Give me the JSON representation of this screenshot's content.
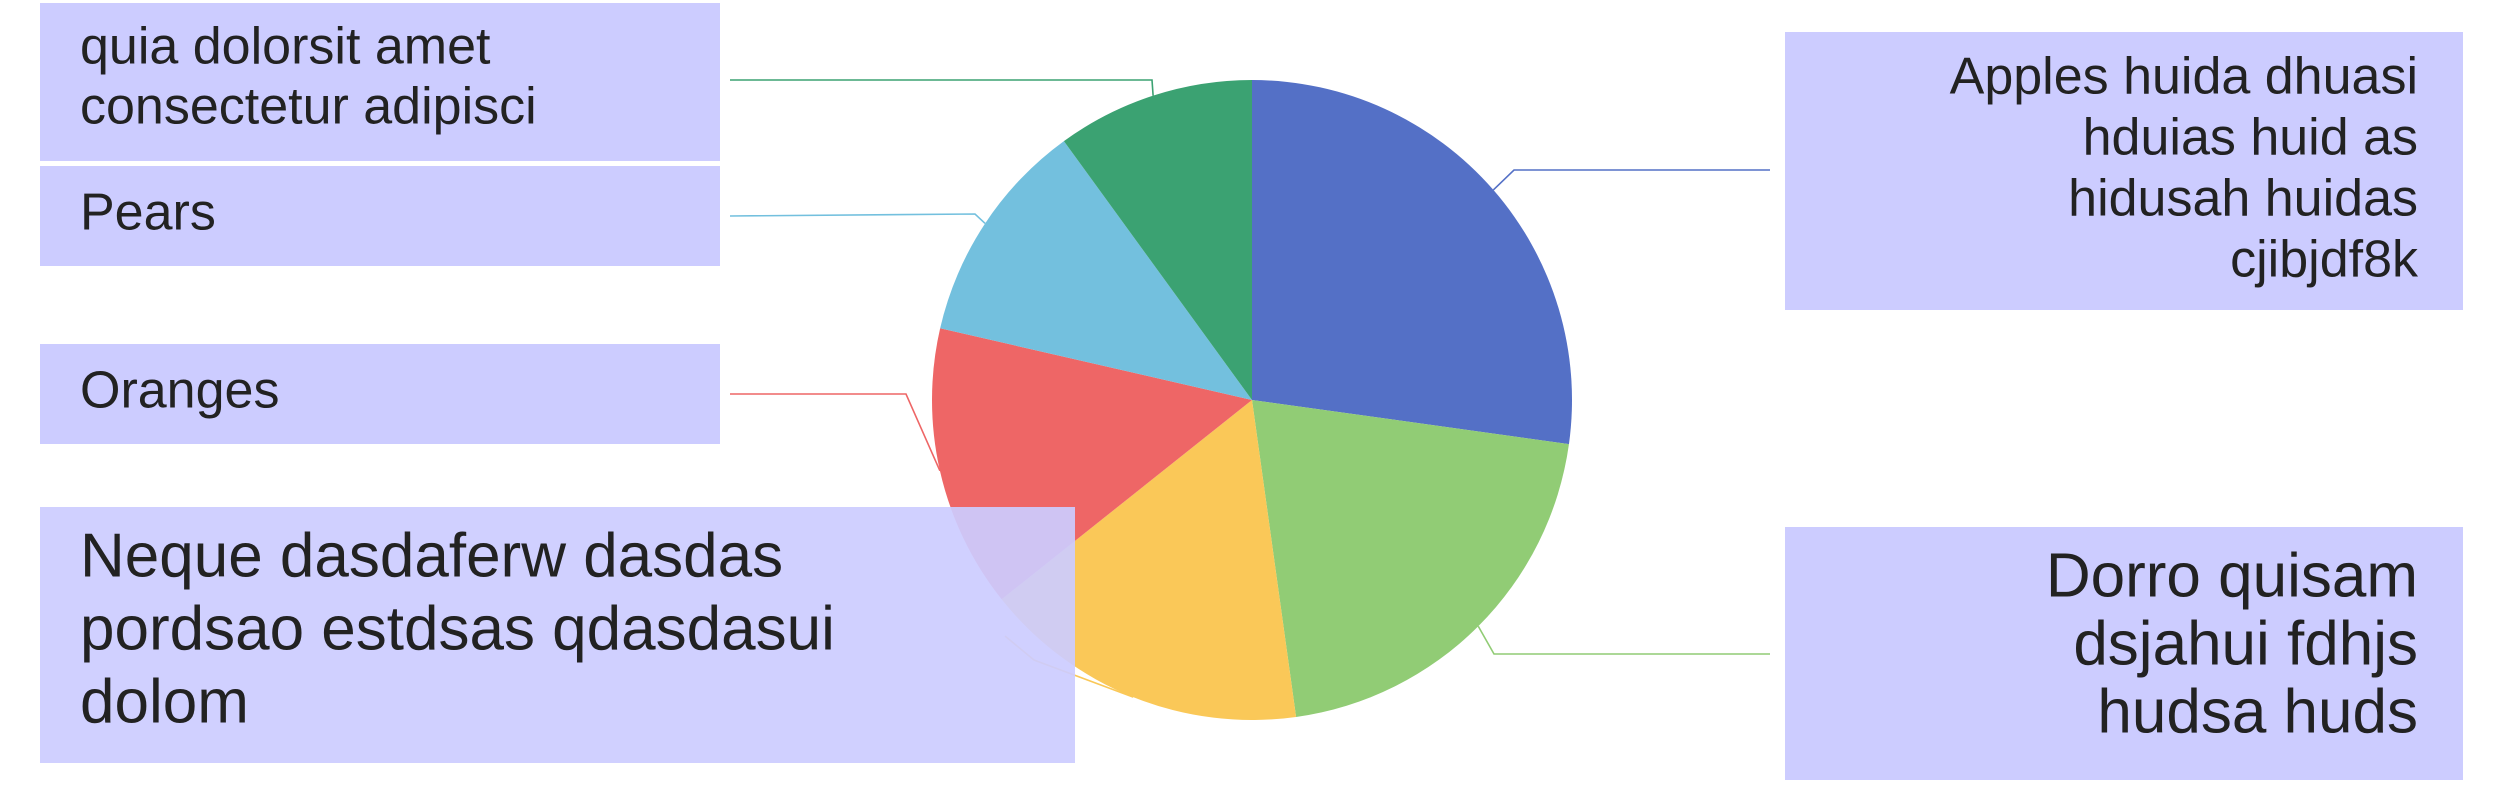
{
  "chart_data": {
    "type": "pie",
    "title": "",
    "slices": [
      {
        "label": "Apples huida dhuasi hduias huid as hidusah huidas cjibjdf8k",
        "value": 27.2,
        "color": "#5470c6"
      },
      {
        "label": "Dorro quisam dsjahui fdhjs hudsa huds",
        "value": 20.6,
        "color": "#91cc75"
      },
      {
        "label": "Neque dasdaferw dasdas pordsao estdsas qdasdasui dolom",
        "value": 16.5,
        "color": "#fac858"
      },
      {
        "label": "Oranges",
        "value": 14.3,
        "color": "#ee6666"
      },
      {
        "label": "Pears",
        "value": 11.4,
        "color": "#73c0de"
      },
      {
        "label": "quia dolorsit amet consectetur adipisci",
        "value": 10.0,
        "color": "#3ba272"
      }
    ],
    "label_box_color": "#ccccff",
    "label_lines": [
      [
        "Apples huida dhuasi",
        "hduias huid as",
        "hidusah huidas",
        "cjibjdf8k"
      ],
      [
        "Dorro quisam",
        "dsjahui fdhjs",
        "hudsa huds"
      ],
      [
        "Neque dasdaferw dasdas",
        "pordsao estdsas qdasdasui",
        "dolom"
      ],
      [
        "Oranges"
      ],
      [
        "Pears"
      ],
      [
        "quia dolorsit amet",
        "consectetur adipisci"
      ]
    ]
  }
}
